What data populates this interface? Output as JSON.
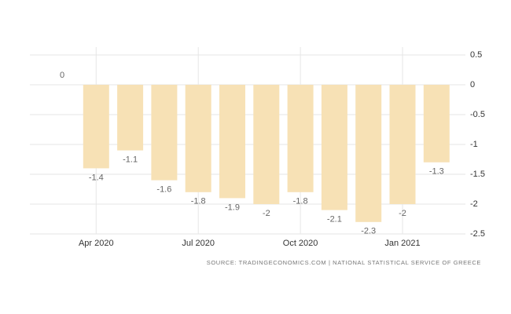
{
  "chart_data": {
    "type": "bar",
    "source": "SOURCE: TRADINGECONOMICS.COM | NATIONAL STATISTICAL SERVICE OF GREECE",
    "categories": [
      null,
      "Apr 2020",
      null,
      null,
      "Jul 2020",
      null,
      null,
      "Oct 2020",
      null,
      null,
      "Jan 2021",
      null
    ],
    "values": [
      0,
      -1.4,
      -1.1,
      -1.6,
      -1.8,
      -1.9,
      -2,
      -1.8,
      -2.1,
      -2.3,
      -2,
      -1.3
    ],
    "color": "#f7e1b5",
    "ylim": [
      -2.5,
      0.5
    ],
    "yticks": [
      0.5,
      0,
      -0.5,
      -1,
      -1.5,
      -2,
      -2.5
    ],
    "grid": true
  }
}
